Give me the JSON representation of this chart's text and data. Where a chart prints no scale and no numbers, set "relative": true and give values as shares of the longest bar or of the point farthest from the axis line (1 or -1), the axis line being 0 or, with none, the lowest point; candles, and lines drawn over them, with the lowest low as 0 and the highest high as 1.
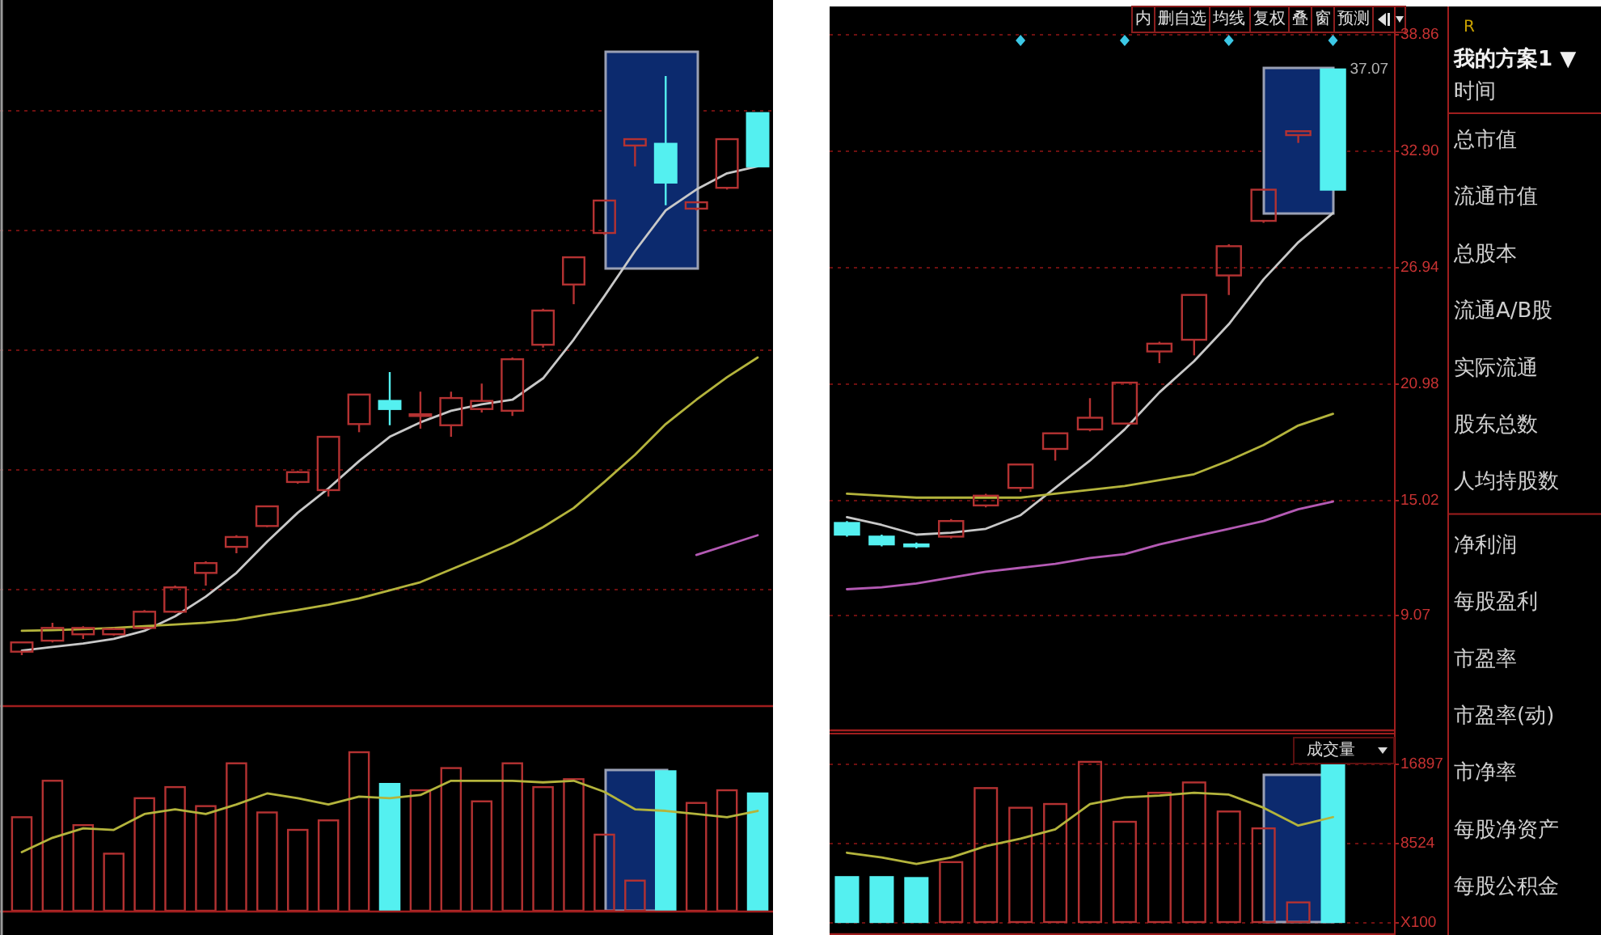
{
  "chart_data": [
    {
      "type": "candlestick",
      "relative": true,
      "categories": [
        null,
        null,
        null,
        null,
        null,
        null,
        null,
        null,
        null,
        null,
        null,
        null,
        null,
        null,
        null,
        null,
        null,
        null,
        null,
        null,
        null,
        null,
        null,
        null,
        null
      ],
      "ohlc": [
        [
          0.006,
          0.022,
          0,
          0.022
        ],
        [
          0.025,
          0.056,
          0.022,
          0.047
        ],
        [
          0.036,
          0.05,
          0.028,
          0.047
        ],
        [
          0.036,
          0.047,
          0.034,
          0.045
        ],
        [
          0.047,
          0.078,
          0.045,
          0.075
        ],
        [
          0.075,
          0.12,
          0.073,
          0.117
        ],
        [
          0.142,
          0.162,
          0.12,
          0.159
        ],
        [
          0.187,
          0.207,
          0.176,
          0.204
        ],
        [
          0.223,
          0.257,
          0.221,
          0.257
        ],
        [
          0.299,
          0.318,
          0.296,
          0.316
        ],
        [
          0.285,
          0.377,
          0.274,
          0.377
        ],
        [
          0.399,
          0.45,
          0.385,
          0.45
        ],
        [
          0.439,
          0.489,
          0.397,
          0.425
        ],
        [
          0.413,
          0.455,
          0.391,
          0.416
        ],
        [
          0.397,
          0.455,
          0.377,
          0.444
        ],
        [
          0.425,
          0.469,
          0.419,
          0.439
        ],
        [
          0.422,
          0.514,
          0.413,
          0.511
        ],
        [
          0.536,
          0.598,
          0.531,
          0.595
        ],
        [
          0.64,
          0.687,
          0.606,
          0.687
        ],
        [
          0.729,
          0.785,
          0.726,
          0.785
        ],
        [
          0.88,
          0.891,
          0.844,
          0.891
        ],
        [
          0.883,
          1,
          0.777,
          0.816
        ],
        [
          0.771,
          0.782,
          0.768,
          0.782
        ],
        [
          0.807,
          0.891,
          0.804,
          0.891
        ],
        [
          0.936,
          0.936,
          0.844,
          0.844
        ]
      ],
      "colors": [
        "#b43232",
        "#b43232",
        "#b43232",
        "#b43232",
        "#b43232",
        "#b43232",
        "#b43232",
        "#b43232",
        "#b43232",
        "#b43232",
        "#b43232",
        "#b43232",
        "#54f0f0",
        "#b43232",
        "#b43232",
        "#b43232",
        "#b43232",
        "#b43232",
        "#b43232",
        "#b43232",
        "#b43232",
        "#54f0f0",
        "#b43232",
        "#b43232",
        "#54f0f0"
      ],
      "series": [
        {
          "type": "line",
          "color": "#c8c8c8",
          "values": [
            0.008,
            0.014,
            0.02,
            0.028,
            0.042,
            0.067,
            0.101,
            0.142,
            0.196,
            0.246,
            0.288,
            0.335,
            0.377,
            0.402,
            0.422,
            0.433,
            0.441,
            0.478,
            0.545,
            0.62,
            0.698,
            0.768,
            0.804,
            0.832,
            0.844
          ]
        },
        {
          "type": "line",
          "color": "#b4b43c",
          "values": [
            0.042,
            0.043,
            0.045,
            0.047,
            0.05,
            0.053,
            0.056,
            0.061,
            0.07,
            0.078,
            0.087,
            0.098,
            0.112,
            0.126,
            0.148,
            0.17,
            0.193,
            0.221,
            0.254,
            0.299,
            0.346,
            0.399,
            0.441,
            0.48,
            0.514
          ]
        },
        {
          "type": "line",
          "color": "#b45ab4",
          "values": [
            null,
            null,
            null,
            null,
            null,
            null,
            null,
            null,
            null,
            null,
            null,
            null,
            null,
            null,
            null,
            null,
            null,
            null,
            null,
            null,
            null,
            null,
            0.173,
            0.19,
            0.207
          ]
        }
      ],
      "ref_lines": [
        {
          "axis": "y",
          "value": 0.941,
          "color": "#6e1010",
          "line_style": "dotted"
        },
        {
          "axis": "y",
          "value": 0.735,
          "color": "#6e1010",
          "line_style": "dotted"
        },
        {
          "axis": "y",
          "value": 0.528,
          "color": "#6e1010",
          "line_style": "dotted"
        },
        {
          "axis": "y",
          "value": 0.321,
          "color": "#6e1010",
          "line_style": "dotted"
        },
        {
          "axis": "y",
          "value": 0.115,
          "color": "#6e1010",
          "line_style": "dotted"
        }
      ]
    },
    {
      "type": "bar",
      "relative": true,
      "categories": [
        null,
        null,
        null,
        null,
        null,
        null,
        null,
        null,
        null,
        null,
        null,
        null,
        null,
        null,
        null,
        null,
        null,
        null,
        null,
        null,
        null,
        null,
        null,
        null,
        null
      ],
      "series": [
        {
          "type": "bar",
          "colors": [
            "#b43232",
            "#b43232",
            "#b43232",
            "#b43232",
            "#b43232",
            "#b43232",
            "#b43232",
            "#b43232",
            "#b43232",
            "#b43232",
            "#b43232",
            "#b43232",
            "#54f0f0",
            "#b43232",
            "#b43232",
            "#b43232",
            "#b43232",
            "#b43232",
            "#b43232",
            "#b43232",
            "#b43232",
            "#54f0f0",
            "#b43232",
            "#b43232",
            "#54f0f0"
          ],
          "values": [
            0.59,
            0.82,
            0.54,
            0.36,
            0.71,
            0.78,
            0.66,
            0.93,
            0.62,
            0.51,
            0.57,
            1,
            0.8,
            0.76,
            0.9,
            0.69,
            0.93,
            0.78,
            0.83,
            0.48,
            0.19,
            0.88,
            0.68,
            0.76,
            0.74
          ]
        },
        {
          "type": "line",
          "color": "#b4b43c",
          "values": [
            0.37,
            0.46,
            0.52,
            0.51,
            0.61,
            0.64,
            0.61,
            0.67,
            0.74,
            0.71,
            0.67,
            0.72,
            0.71,
            0.73,
            0.82,
            0.82,
            0.82,
            0.81,
            0.82,
            0.75,
            0.64,
            0.63,
            0.61,
            0.59,
            0.63
          ]
        }
      ]
    },
    {
      "type": "other",
      "annotations": [
        "内",
        "删自选",
        "均线",
        "复权",
        "叠",
        "窗",
        "预测"
      ]
    },
    {
      "type": "candlestick",
      "categories": [
        null,
        null,
        null,
        null,
        null,
        null,
        null,
        null,
        null,
        null,
        null,
        null,
        null,
        null,
        null
      ],
      "ohlc": [
        [
          13.8,
          13.9,
          13.1,
          13.2
        ],
        [
          13.1,
          13.2,
          12.6,
          12.7
        ],
        [
          12.7,
          12.8,
          12.5,
          12.6
        ],
        [
          13.1,
          14.0,
          13.0,
          13.9
        ],
        [
          14.7,
          15.3,
          14.6,
          15.2
        ],
        [
          15.6,
          16.8,
          15.4,
          16.8
        ],
        [
          17.6,
          18.4,
          17.0,
          18.4
        ],
        [
          18.6,
          20.2,
          18.5,
          19.2
        ],
        [
          18.9,
          21.0,
          18.9,
          21.0
        ],
        [
          22.6,
          23.1,
          22.0,
          23.0
        ],
        [
          23.2,
          25.5,
          22.4,
          25.5
        ],
        [
          26.5,
          28.1,
          25.5,
          28.0
        ],
        [
          29.3,
          30.9,
          29.2,
          30.9
        ],
        [
          33.7,
          33.9,
          33.3,
          33.9
        ],
        [
          37.07,
          37.07,
          30.9,
          30.9
        ]
      ],
      "colors": [
        "#54f0f0",
        "#54f0f0",
        "#54f0f0",
        "#b43232",
        "#b43232",
        "#b43232",
        "#b43232",
        "#b43232",
        "#b43232",
        "#b43232",
        "#b43232",
        "#b43232",
        "#b43232",
        "#b43232",
        "#54f0f0"
      ],
      "ylim": [
        3.2,
        40.3
      ],
      "yticks": [
        9.07,
        15.02,
        20.98,
        26.94,
        {
          "value": 32.9,
          "label": "32.90"
        },
        38.86
      ],
      "grid": "y",
      "tick_labels": "y",
      "series": [
        {
          "type": "line",
          "color": "#c8c8c8",
          "values": [
            14.1,
            13.7,
            13.2,
            13.3,
            13.5,
            14.2,
            15.6,
            17.0,
            18.6,
            20.5,
            22.1,
            24.0,
            26.3,
            28.2,
            29.7
          ]
        },
        {
          "type": "line",
          "color": "#b4b43c",
          "values": [
            15.3,
            15.2,
            15.1,
            15.1,
            15.1,
            15.1,
            15.3,
            15.5,
            15.7,
            16.0,
            16.3,
            17.0,
            17.8,
            18.8,
            19.4
          ]
        },
        {
          "type": "line",
          "color": "#b45ab4",
          "values": [
            10.4,
            10.5,
            10.7,
            11.0,
            11.3,
            11.5,
            11.7,
            12.0,
            12.2,
            12.7,
            13.1,
            13.5,
            13.9,
            14.5,
            14.9
          ]
        }
      ],
      "annotations": [
        "37.07"
      ]
    },
    {
      "type": "bar",
      "title": "成交量",
      "categories": [
        null,
        null,
        null,
        null,
        null,
        null,
        null,
        null,
        null,
        null,
        null,
        null,
        null,
        null,
        null
      ],
      "ylim": [
        0,
        20200
      ],
      "yticks": [
        {
          "value": 0,
          "label": "X100"
        },
        8524,
        16897
      ],
      "grid": "y",
      "tick_labels": "y",
      "series": [
        {
          "type": "bar",
          "colors": [
            "#54f0f0",
            "#54f0f0",
            "#54f0f0",
            "#b43232",
            "#b43232",
            "#b43232",
            "#b43232",
            "#b43232",
            "#b43232",
            "#b43232",
            "#b43232",
            "#b43232",
            "#b43232",
            "#b43232",
            "#54f0f0"
          ],
          "values": [
            4800,
            4800,
            4700,
            6400,
            14300,
            12200,
            12600,
            17100,
            10700,
            13800,
            14900,
            11800,
            10000,
            2100,
            17100
          ]
        },
        {
          "type": "line",
          "color": "#b4b43c",
          "values": [
            7400,
            6900,
            6200,
            6900,
            8100,
            8900,
            9900,
            12600,
            13300,
            13500,
            13800,
            13600,
            12200,
            10300,
            11200
          ]
        }
      ]
    },
    {
      "type": "other",
      "annotations": [
        "R",
        "我的方案1 ▼",
        "时间",
        "总市值",
        "流通市值",
        "总股本",
        "流通A/B股",
        "实际流通",
        "股东总数",
        "人均持股数",
        "净利润",
        "每股盈利",
        "市盈率",
        "市盈率(动)",
        "市净率",
        "每股净资产",
        "每股公积金"
      ]
    }
  ]
}
